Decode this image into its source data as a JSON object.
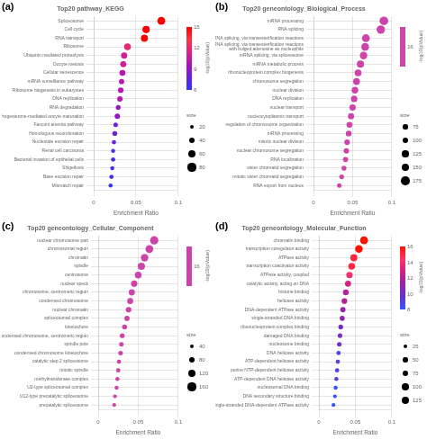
{
  "chart_data": [
    {
      "type": "bubble",
      "panel_label": "(a)",
      "title": "Top20 pathway_KEGG",
      "xlabel": "Enrichment Ratio",
      "categories": [
        "Mismatch repair",
        "Base excision repair",
        "Shigellosis",
        "Bacterial invasion of epithelial cells",
        "Renal cell carcinoma",
        "Nucleotide excision repair",
        "Homologous recombination",
        "Fanconi anemia pathway",
        "Progesterone-mediated oocyte maturation",
        "RNA degradation",
        "DNA replication",
        "Ribosome biogenesis in eukaryotes",
        "mRNA surveillance pathway",
        "Cellular senescence",
        "Oocyte meiosis",
        "Ubiquitin mediated proteolysis",
        "Ribosome",
        "RNA transport",
        "Cell cycle",
        "Spliceosome"
      ],
      "values": [
        0.02,
        0.021,
        0.022,
        0.023,
        0.023,
        0.024,
        0.025,
        0.026,
        0.028,
        0.029,
        0.031,
        0.032,
        0.033,
        0.034,
        0.035,
        0.036,
        0.04,
        0.06,
        0.062,
        0.08
      ],
      "sizes": [
        8,
        9,
        8,
        9,
        8,
        9,
        11,
        10,
        14,
        11,
        14,
        15,
        13,
        17,
        18,
        19,
        22,
        24,
        26,
        30
      ],
      "color_values": [
        6,
        7,
        7,
        7,
        7,
        8,
        8,
        8,
        9,
        9,
        10,
        10,
        10,
        10,
        11,
        11,
        12,
        15,
        15,
        16
      ],
      "colormap": [
        "#3333FF",
        "#6622DD",
        "#AA11BB",
        "#DD2288",
        "#FF3344",
        "#FF0000"
      ],
      "color_range": [
        6,
        15
      ],
      "color_ticks": [
        6,
        9,
        12,
        15
      ],
      "color_label": "-log10(pValue)",
      "size_legend": {
        "title": "size",
        "values": [
          20,
          40,
          60,
          80
        ],
        "sizes": [
          8,
          16,
          24,
          32
        ]
      },
      "xlim": [
        0,
        0.1
      ],
      "xticks": [
        0,
        0.05,
        0.1
      ],
      "grid": true
    },
    {
      "type": "bubble",
      "panel_label": "(b)",
      "title": "Top20 geneontology_Biological_Process",
      "xlabel": "Enrichment Ratio",
      "categories": [
        "RNA export from nucleus",
        "mitotic sister chromatid segregation",
        "sister chromatid segregation",
        "RNA localization",
        "nuclear chromosome segregation",
        "mitotic nuclear division",
        "mRNA processing",
        "regulation of chromosome organization",
        "nucleocytoplasmic transport",
        "nuclear transport",
        "DNA replication",
        "nuclear division",
        "chromosome segregation",
        "ribonucleoprotein complex biogenesis",
        "mRNA metabolic process",
        "mRNA splicing, via spliceosome",
        "RNA splicing, via transesterification reactions\nwith bulged adenosine as nucleophile",
        "RNA splicing, via transesterification reactions",
        "RNA splicing",
        "mRNA processing"
      ],
      "values": [
        0.033,
        0.036,
        0.039,
        0.041,
        0.042,
        0.043,
        0.045,
        0.046,
        0.048,
        0.05,
        0.052,
        0.053,
        0.055,
        0.057,
        0.06,
        0.064,
        0.066,
        0.067,
        0.086,
        0.09
      ],
      "sizes": [
        10,
        11,
        12,
        13,
        14,
        15,
        16,
        17,
        18,
        19,
        20,
        21,
        22,
        23,
        25,
        27,
        29,
        30,
        34,
        36
      ],
      "color": "#CC44AA",
      "color_ticks": [
        16
      ],
      "color_label": "-log10(pValue)",
      "size_legend": {
        "title": "size",
        "values": [
          75,
          100,
          125,
          150,
          175
        ],
        "sizes": [
          10,
          15,
          20,
          27,
          36
        ]
      },
      "xlim": [
        0,
        0.1
      ],
      "xticks": [
        0,
        0.05,
        0.1
      ],
      "grid": true
    },
    {
      "type": "bubble",
      "panel_label": "(c)",
      "title": "Top20 geneontology_Cellular_Component",
      "xlabel": "Enrichment Ratio",
      "categories": [
        "precatalytic spliceosome",
        "U12-type precatalytic spliceosome",
        "U2-type spliceosomal complex",
        "methyltransferase complex",
        "mitotic spindle",
        "catalytic step 2 spliceosome",
        "condensed chromosome kinetochore",
        "spindle pole",
        "condensed chromosome, centromeric region",
        "kinetochore",
        "spliceosomal complex",
        "nuclear chromatin",
        "condensed chromosome",
        "chromosome, centromeric region",
        "nuclear speck",
        "centrosome",
        "spindle",
        "chromatin",
        "chromosomal region",
        "nuclear chromosome part"
      ],
      "values": [
        0.02,
        0.021,
        0.023,
        0.024,
        0.025,
        0.026,
        0.028,
        0.029,
        0.03,
        0.033,
        0.036,
        0.038,
        0.04,
        0.042,
        0.045,
        0.05,
        0.054,
        0.058,
        0.064,
        0.07
      ],
      "sizes": [
        7,
        7,
        8,
        8,
        9,
        9,
        10,
        10,
        11,
        12,
        13,
        15,
        17,
        18,
        20,
        22,
        25,
        27,
        30,
        33
      ],
      "color": "#CC44AA",
      "color_ticks": [
        16
      ],
      "color_label": "-log10(pValue)",
      "size_legend": {
        "title": "size",
        "values": [
          40,
          80,
          120,
          160
        ],
        "sizes": [
          7,
          14,
          25,
          33
        ]
      },
      "xlim": [
        0,
        0.1
      ],
      "xticks": [
        0,
        0.05,
        0.1
      ],
      "grid": true
    },
    {
      "type": "bubble",
      "panel_label": "(d)",
      "title": "Top20 geneontology_Molecular_Function",
      "xlabel": "Enrichment Ratio",
      "categories": [
        "single-stranded DNA-dependent ATPase activity",
        "DNA secondary structure binding",
        "nucleosomal DNA binding",
        "ATP-dependent DNA helicase activity",
        "purine NTP-dependent helicase activity",
        "ATP-dependent helicase activity",
        "DNA helicase activity",
        "nucleosome binding",
        "damaged DNA binding",
        "ribonucleoprotein complex binding",
        "single-stranded DNA binding",
        "DNA-dependent ATPase activity",
        "helicase activity",
        "histone binding",
        "catalytic activity, acting on DNA",
        "ATPase activity, coupled",
        "transcription coactivator activity",
        "ATPase activity",
        "transcription coregulator activity",
        "chromatin binding"
      ],
      "values": [
        0.02,
        0.022,
        0.023,
        0.024,
        0.025,
        0.026,
        0.027,
        0.028,
        0.029,
        0.03,
        0.032,
        0.033,
        0.035,
        0.037,
        0.04,
        0.042,
        0.045,
        0.048,
        0.055,
        0.062
      ],
      "sizes": [
        7,
        7,
        8,
        8,
        9,
        9,
        9,
        10,
        10,
        11,
        12,
        13,
        15,
        16,
        18,
        20,
        22,
        24,
        28,
        30
      ],
      "color_values": [
        8,
        8,
        8,
        9,
        9,
        9,
        9,
        10,
        10,
        10,
        11,
        11,
        12,
        12,
        13,
        14,
        15,
        15,
        16,
        16
      ],
      "colormap": [
        "#3355FF",
        "#6633CC",
        "#9922AA",
        "#CC2288",
        "#FF3366",
        "#FF1100"
      ],
      "color_range": [
        8,
        16
      ],
      "color_ticks": [
        8,
        10,
        12,
        14,
        16
      ],
      "color_label": "-log10(pValue)",
      "size_legend": {
        "title": "size",
        "values": [
          25,
          50,
          75,
          100,
          125
        ],
        "sizes": [
          7,
          11,
          16,
          22,
          30
        ]
      },
      "xlim": [
        0,
        0.1
      ],
      "xticks": [
        0,
        0.05,
        0.1
      ],
      "grid": true
    }
  ]
}
